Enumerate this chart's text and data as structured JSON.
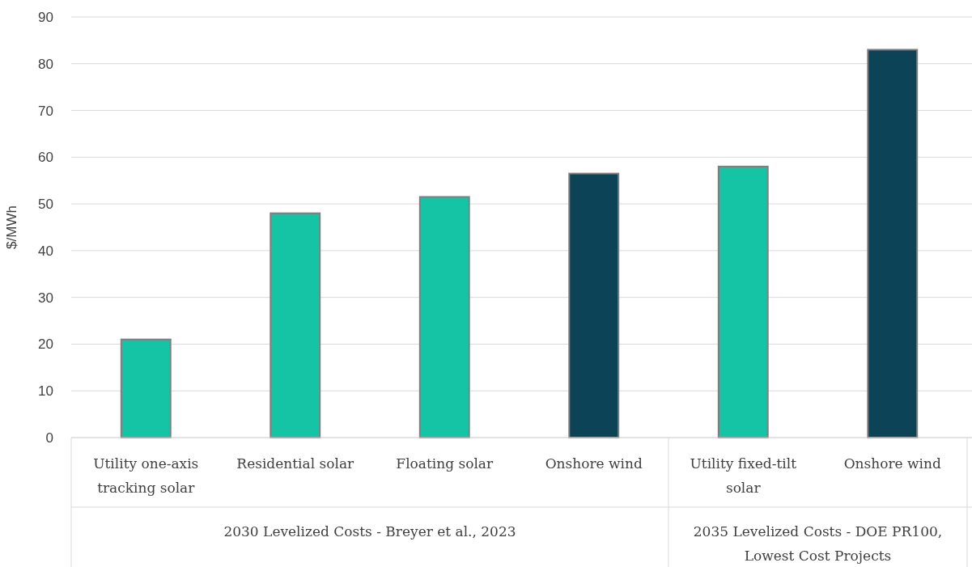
{
  "chart_data": {
    "type": "bar",
    "ylabel": "$/MWh",
    "categories": [
      "Utility one-axis tracking solar",
      "Residential solar",
      "Floating solar",
      "Onshore wind",
      "Utility fixed-tilt solar",
      "Onshore wind"
    ],
    "values": [
      21,
      48,
      51.5,
      56.5,
      58,
      83
    ],
    "colors": [
      "#14c4a4",
      "#14c4a4",
      "#14c4a4",
      "#0d4357",
      "#14c4a4",
      "#0d4357"
    ],
    "ylim": [
      0,
      90
    ],
    "yticks": [
      0,
      10,
      20,
      30,
      40,
      50,
      60,
      70,
      80,
      90
    ],
    "grid": "y",
    "annotations": [
      "2030 Levelized Costs - Breyer et al., 2023",
      "2035 Levelized Costs - DOE PR100, Lowest Cost Projects"
    ]
  }
}
